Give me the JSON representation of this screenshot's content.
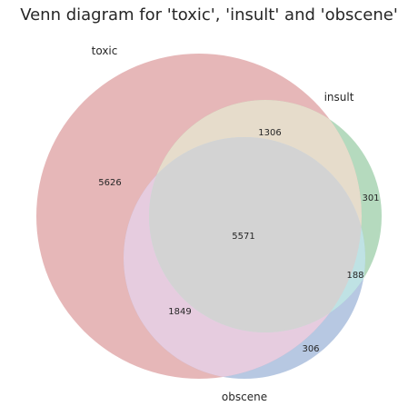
{
  "chart_data": {
    "type": "venn",
    "title": "Venn diagram for 'toxic', 'insult' and 'obscene'",
    "sets": [
      {
        "name": "toxic",
        "color": "#d68a8d"
      },
      {
        "name": "insult",
        "color": "#88c496"
      },
      {
        "name": "obscene",
        "color": "#8aa6d1"
      }
    ],
    "regions": {
      "toxic_only": 5626,
      "insult_only": 301,
      "obscene_only": 306,
      "toxic_insult": 1306,
      "toxic_obscene": 1849,
      "insult_obscene": 188,
      "all_three": 5571
    },
    "colors": {
      "toxic_insult": "#e6dccb",
      "toxic_obscene": "#e6ccdf",
      "insult_obscene": "#bfe2e4",
      "all_three": "#d3d3d3",
      "text": "#262626"
    }
  }
}
